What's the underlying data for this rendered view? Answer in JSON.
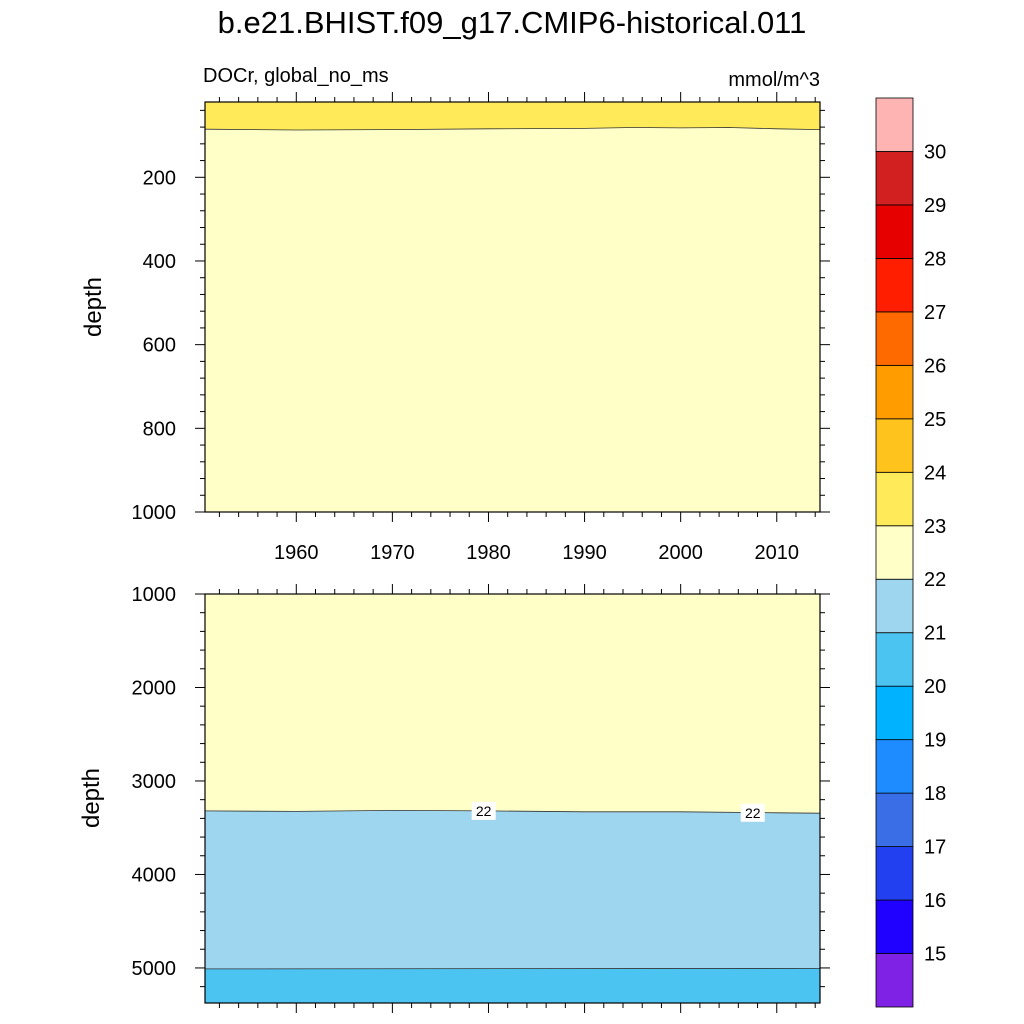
{
  "chart_data": {
    "type": "heatmap",
    "title": "b.e21.BHIST.f09_g17.CMIP6-historical.011",
    "left_subtitle": "DOCr, global_no_ms",
    "right_subtitle": "mmol/m^3",
    "colorbar": {
      "levels": [
        15,
        16,
        17,
        18,
        19,
        20,
        21,
        22,
        23,
        24,
        25,
        26,
        27,
        28,
        29,
        30
      ],
      "colors": [
        "#8021e6",
        "#2000ff",
        "#2340f0",
        "#3a6ee6",
        "#1e8cff",
        "#00b2ff",
        "#4cc4f2",
        "#9fd6ef",
        "#ffffc8",
        "#ffeb5a",
        "#ffc31e",
        "#ff9c00",
        "#ff6a00",
        "#ff1e00",
        "#e60000",
        "#d22020",
        "#ffb4b4"
      ]
    },
    "panels": [
      {
        "ylabel": "depth",
        "ylim": [
          20,
          1000
        ],
        "y_ticks": [
          200,
          400,
          600,
          800,
          1000
        ],
        "x_ticks": [
          1960,
          1970,
          1980,
          1990,
          2000,
          2010
        ],
        "xlim": [
          1950.5,
          2014.5
        ],
        "contour_22_23_depth": [
          [
            1950.5,
            85
          ],
          [
            1960,
            87
          ],
          [
            1970,
            86
          ],
          [
            1980,
            84
          ],
          [
            1990,
            83
          ],
          [
            1995,
            81
          ],
          [
            2000,
            82
          ],
          [
            2005,
            81
          ],
          [
            2010,
            84
          ],
          [
            2014.5,
            86
          ]
        ],
        "regions": [
          {
            "level_band": "22-23",
            "range": "below contour"
          },
          {
            "level_band": "23-24",
            "range": "above contour"
          }
        ]
      },
      {
        "ylabel": "depth",
        "ylim": [
          1000,
          5375
        ],
        "y_ticks": [
          1000,
          2000,
          3000,
          4000,
          5000
        ],
        "x_ticks": [
          1960,
          1970,
          1980,
          1990,
          2000,
          2010
        ],
        "xlim": [
          1950.5,
          2014.5
        ],
        "contour_21_22_depth": [
          [
            1950.5,
            3320
          ],
          [
            1960,
            3325
          ],
          [
            1970,
            3315
          ],
          [
            1980,
            3320
          ],
          [
            1990,
            3330
          ],
          [
            2000,
            3330
          ],
          [
            2010,
            3340
          ],
          [
            2014.5,
            3345
          ]
        ],
        "contour_20_21_depth": [
          [
            1950.5,
            5010
          ],
          [
            2014.5,
            5005
          ]
        ],
        "contour_labels": [
          {
            "text": "22",
            "x": 1979.5,
            "depth": 3320
          },
          {
            "text": "22",
            "x": 2007.5,
            "depth": 3340
          }
        ]
      }
    ]
  }
}
